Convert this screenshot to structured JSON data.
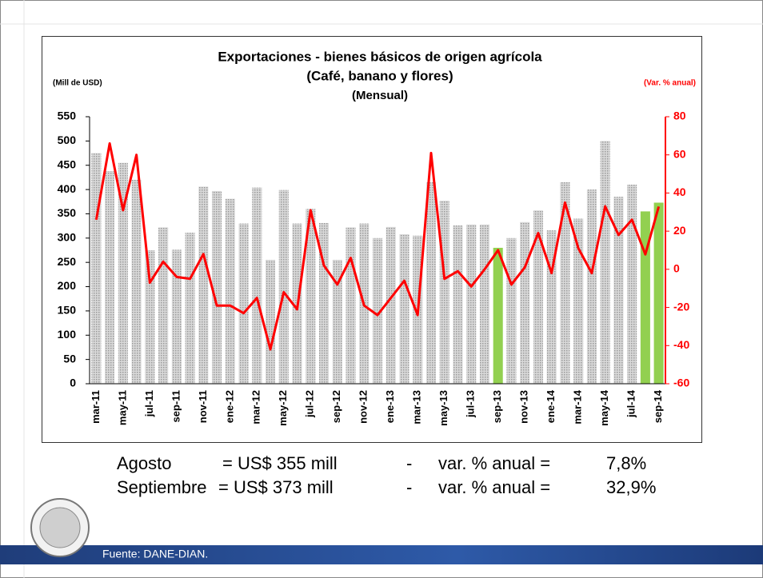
{
  "chart_data": {
    "type": "bar_line",
    "title": [
      "Exportaciones - bienes básicos de origen agrícola",
      "(Café, banano y flores)",
      "(Mensual)"
    ],
    "y_label": "(Mill de USD)",
    "y2_label": "(Var. % anual)",
    "categories": [
      "mar-11",
      null,
      "may-11",
      null,
      "jul-11",
      null,
      "sep-11",
      null,
      "nov-11",
      null,
      "ene-12",
      null,
      "mar-12",
      null,
      "may-12",
      null,
      "jul-12",
      null,
      "sep-12",
      null,
      "nov-12",
      null,
      "ene-13",
      null,
      "mar-13",
      null,
      "may-13",
      null,
      "jul-13",
      null,
      "sep-13",
      null,
      "nov-13",
      null,
      "ene-14",
      null,
      "mar-14",
      null,
      "may-14",
      null,
      "jul-14",
      null,
      "sep-14"
    ],
    "series": [
      {
        "type": "bar",
        "colors": [
          "#c0c0c0",
          "#c0c0c0",
          "#c0c0c0",
          "#c0c0c0",
          "#c0c0c0",
          "#c0c0c0",
          "#c0c0c0",
          "#c0c0c0",
          "#c0c0c0",
          "#c0c0c0",
          "#c0c0c0",
          "#c0c0c0",
          "#c0c0c0",
          "#c0c0c0",
          "#c0c0c0",
          "#c0c0c0",
          "#c0c0c0",
          "#c0c0c0",
          "#c0c0c0",
          "#c0c0c0",
          "#c0c0c0",
          "#c0c0c0",
          "#c0c0c0",
          "#c0c0c0",
          "#c0c0c0",
          "#c0c0c0",
          "#c0c0c0",
          "#c0c0c0",
          "#c0c0c0",
          "#c0c0c0",
          "#92d050",
          "#c0c0c0",
          "#c0c0c0",
          "#c0c0c0",
          "#c0c0c0",
          "#c0c0c0",
          "#c0c0c0",
          "#c0c0c0",
          "#c0c0c0",
          "#c0c0c0",
          "#c0c0c0",
          "#92d050",
          "#92d050"
        ],
        "values": [
          475,
          438,
          455,
          420,
          275,
          322,
          276,
          311,
          406,
          397,
          381,
          330,
          404,
          255,
          399,
          330,
          360,
          331,
          255,
          322,
          330,
          300,
          323,
          308,
          305,
          415,
          377,
          326,
          328,
          328,
          280,
          300,
          333,
          357,
          316,
          415,
          340,
          400,
          500,
          385,
          410,
          355,
          373
        ]
      },
      {
        "type": "line",
        "axis": "y2",
        "color": "#ff0000",
        "values": [
          26,
          66,
          31,
          60,
          -7,
          4,
          -4,
          -5,
          8,
          -19,
          -19,
          -23,
          -15,
          -42,
          -12,
          -21,
          31,
          2,
          -8,
          6,
          -19,
          -24,
          -15,
          -6,
          -24,
          61,
          -5,
          -1,
          -9,
          0,
          10,
          -8,
          1,
          19,
          -2,
          35,
          11,
          -2,
          33,
          18,
          26,
          7.8,
          32.9
        ]
      }
    ],
    "ylim": [
      0,
      550
    ],
    "yticks": [
      0,
      50,
      100,
      150,
      200,
      250,
      300,
      350,
      400,
      450,
      500,
      550
    ],
    "y2lim": [
      -60,
      80
    ],
    "y2ticks": [
      -60,
      -40,
      -20,
      0,
      20,
      40,
      60,
      80
    ],
    "y2_color": "#ff0000"
  },
  "summary": [
    [
      "Agosto",
      "= US$ 355 mill",
      "-",
      "var. % anual =",
      "7,8%"
    ],
    [
      "Septiembre",
      "= US$ 373 mill",
      "-",
      "var. % anual =",
      "32,9%"
    ]
  ],
  "source": "Fuente: DANE-DIAN."
}
